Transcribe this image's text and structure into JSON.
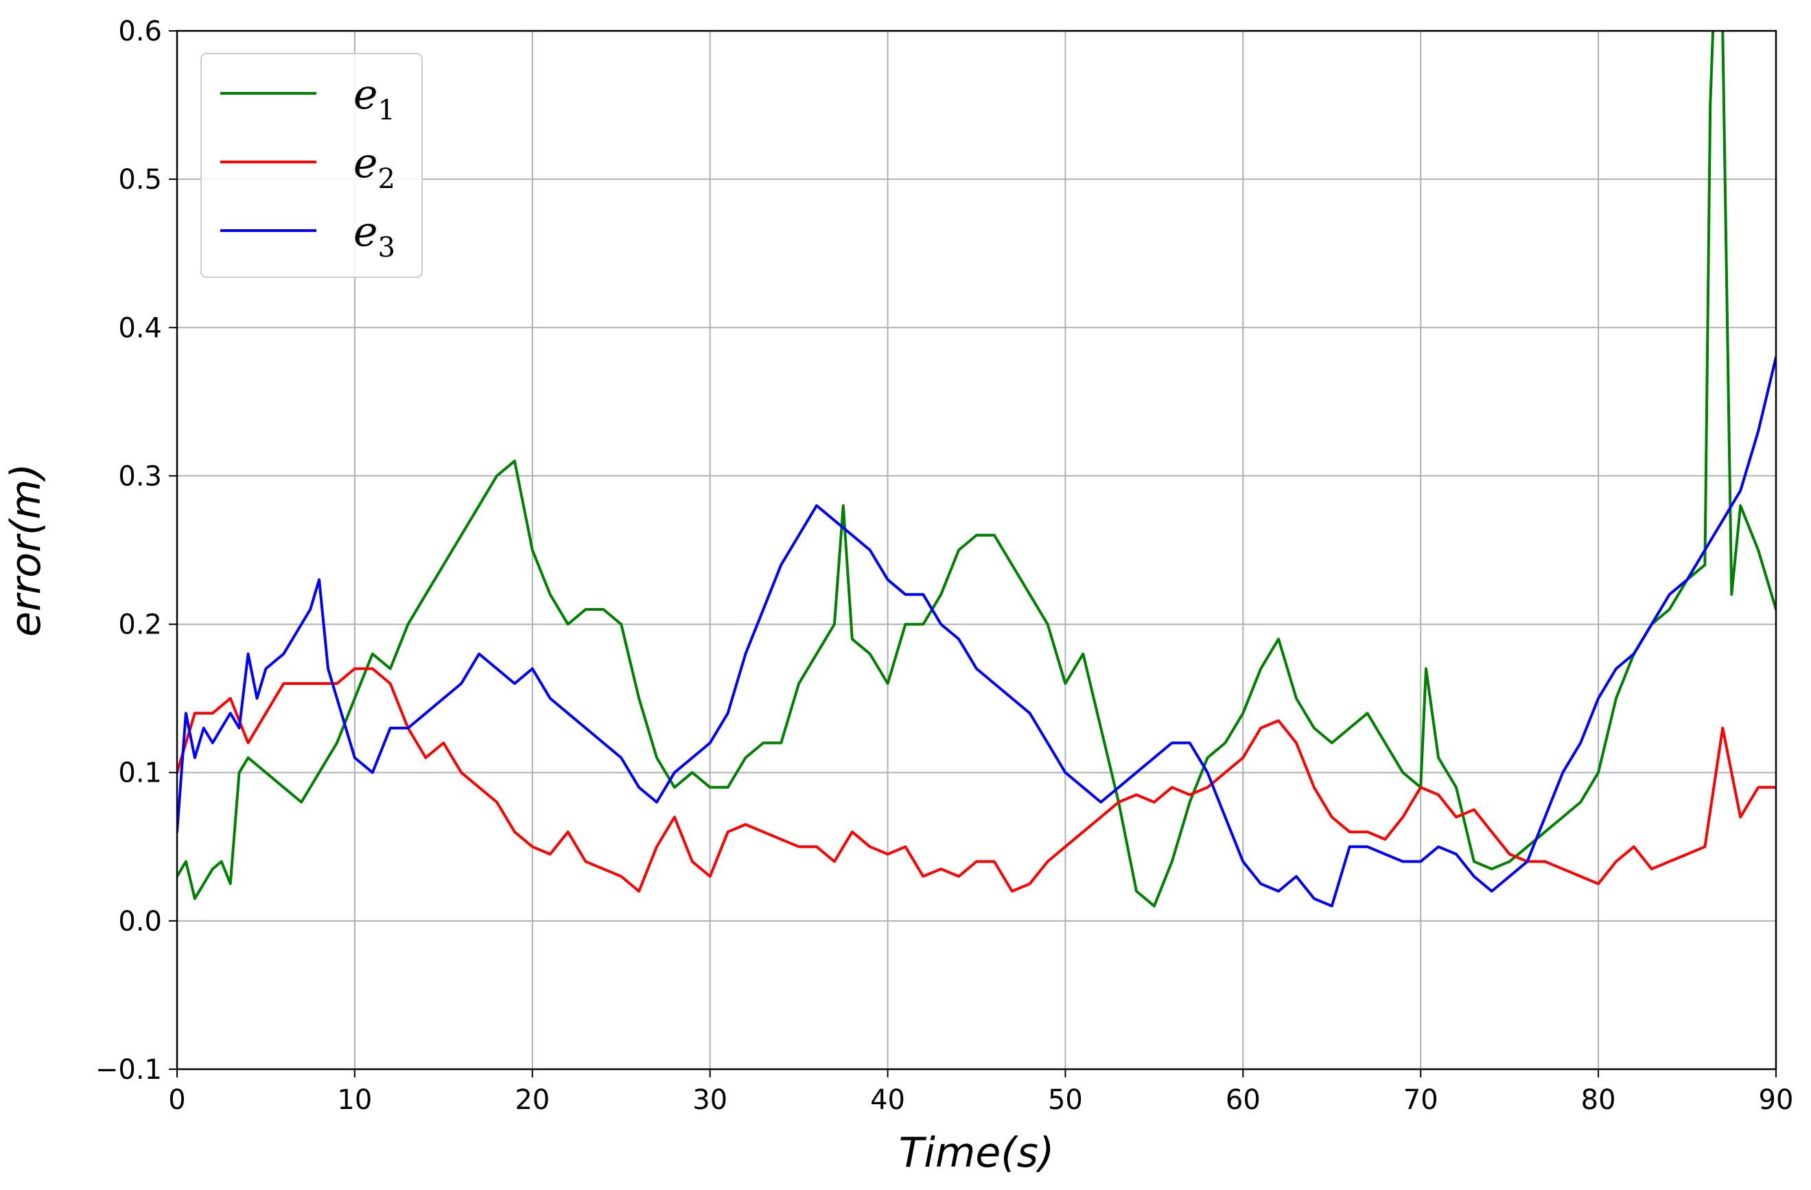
{
  "chart_data": {
    "type": "line",
    "title": "",
    "xlabel": "Time(s)",
    "ylabel": "error(m)",
    "xlim": [
      0,
      90
    ],
    "ylim": [
      -0.1,
      0.6
    ],
    "xticks": [
      0,
      10,
      20,
      30,
      40,
      50,
      60,
      70,
      80,
      90
    ],
    "xtick_labels": [
      "0",
      "10",
      "20",
      "30",
      "40",
      "50",
      "60",
      "70",
      "80",
      "90"
    ],
    "yticks": [
      -0.1,
      0.0,
      0.1,
      0.2,
      0.3,
      0.4,
      0.5,
      0.6
    ],
    "ytick_labels": [
      "−0.1",
      "0.0",
      "0.1",
      "0.2",
      "0.3",
      "0.4",
      "0.5",
      "0.6"
    ],
    "grid": true,
    "legend": "top-left",
    "series": [
      {
        "name": "e",
        "subscript": "1",
        "color": "#008000",
        "x": [
          0,
          0.5,
          1,
          1.5,
          2,
          2.5,
          3,
          3.5,
          4,
          5,
          6,
          7,
          8,
          9,
          10,
          11,
          12,
          13,
          14,
          15,
          16,
          17,
          18,
          19,
          20,
          21,
          22,
          23,
          24,
          25,
          26,
          27,
          28,
          29,
          30,
          31,
          32,
          33,
          34,
          35,
          36,
          37,
          37.5,
          38,
          39,
          40,
          41,
          42,
          43,
          44,
          45,
          46,
          47,
          48,
          49,
          50,
          51,
          52,
          53,
          54,
          55,
          56,
          57,
          58,
          59,
          60,
          61,
          62,
          63,
          64,
          65,
          66,
          67,
          68,
          69,
          70,
          70.3,
          71,
          72,
          73,
          74,
          75,
          76,
          77,
          78,
          79,
          80,
          81,
          82,
          83,
          84,
          85,
          86,
          86.3,
          86.6,
          87,
          87.5,
          88,
          89,
          90
        ],
        "y": [
          0.03,
          0.04,
          0.015,
          0.025,
          0.035,
          0.04,
          0.025,
          0.1,
          0.11,
          0.1,
          0.09,
          0.08,
          0.1,
          0.12,
          0.15,
          0.18,
          0.17,
          0.2,
          0.22,
          0.24,
          0.26,
          0.28,
          0.3,
          0.31,
          0.25,
          0.22,
          0.2,
          0.21,
          0.21,
          0.2,
          0.15,
          0.11,
          0.09,
          0.1,
          0.09,
          0.09,
          0.11,
          0.12,
          0.12,
          0.16,
          0.18,
          0.2,
          0.28,
          0.19,
          0.18,
          0.16,
          0.2,
          0.2,
          0.22,
          0.25,
          0.26,
          0.26,
          0.24,
          0.22,
          0.2,
          0.16,
          0.18,
          0.13,
          0.08,
          0.02,
          0.01,
          0.04,
          0.08,
          0.11,
          0.12,
          0.14,
          0.17,
          0.19,
          0.15,
          0.13,
          0.12,
          0.13,
          0.14,
          0.12,
          0.1,
          0.09,
          0.17,
          0.11,
          0.09,
          0.04,
          0.035,
          0.04,
          0.05,
          0.06,
          0.07,
          0.08,
          0.1,
          0.15,
          0.18,
          0.2,
          0.21,
          0.23,
          0.24,
          0.55,
          0.65,
          0.6,
          0.22,
          0.28,
          0.25,
          0.21
        ]
      },
      {
        "name": "e",
        "subscript": "2",
        "color": "#ff0000",
        "x": [
          0,
          0.5,
          1,
          2,
          3,
          4,
          5,
          6,
          7,
          8,
          9,
          10,
          11,
          12,
          13,
          14,
          15,
          16,
          17,
          18,
          19,
          20,
          21,
          22,
          23,
          24,
          25,
          26,
          27,
          28,
          29,
          30,
          31,
          32,
          33,
          34,
          35,
          36,
          37,
          38,
          39,
          40,
          41,
          42,
          43,
          44,
          45,
          46,
          47,
          48,
          49,
          50,
          51,
          52,
          53,
          54,
          55,
          56,
          57,
          58,
          59,
          60,
          61,
          62,
          63,
          64,
          65,
          66,
          67,
          68,
          69,
          70,
          71,
          72,
          73,
          74,
          75,
          76,
          77,
          78,
          79,
          80,
          81,
          82,
          83,
          84,
          85,
          86,
          87,
          88,
          89,
          90
        ],
        "y": [
          0.1,
          0.12,
          0.14,
          0.14,
          0.15,
          0.12,
          0.14,
          0.16,
          0.16,
          0.16,
          0.16,
          0.17,
          0.17,
          0.16,
          0.13,
          0.11,
          0.12,
          0.1,
          0.09,
          0.08,
          0.06,
          0.05,
          0.045,
          0.06,
          0.04,
          0.035,
          0.03,
          0.02,
          0.05,
          0.07,
          0.04,
          0.03,
          0.06,
          0.065,
          0.06,
          0.055,
          0.05,
          0.05,
          0.04,
          0.06,
          0.05,
          0.045,
          0.05,
          0.03,
          0.035,
          0.03,
          0.04,
          0.04,
          0.02,
          0.025,
          0.04,
          0.05,
          0.06,
          0.07,
          0.08,
          0.085,
          0.08,
          0.09,
          0.085,
          0.09,
          0.1,
          0.11,
          0.13,
          0.135,
          0.12,
          0.09,
          0.07,
          0.06,
          0.06,
          0.055,
          0.07,
          0.09,
          0.085,
          0.07,
          0.075,
          0.06,
          0.045,
          0.04,
          0.04,
          0.035,
          0.03,
          0.025,
          0.04,
          0.05,
          0.035,
          0.04,
          0.045,
          0.05,
          0.13,
          0.07,
          0.09,
          0.09
        ]
      },
      {
        "name": "e",
        "subscript": "3",
        "color": "#0000ff",
        "x": [
          0,
          0.5,
          1,
          1.5,
          2,
          2.5,
          3,
          3.5,
          4,
          4.5,
          5,
          6,
          7,
          7.5,
          8,
          8.5,
          9,
          10,
          11,
          12,
          13,
          14,
          15,
          16,
          17,
          18,
          19,
          20,
          21,
          22,
          23,
          24,
          25,
          26,
          27,
          28,
          29,
          30,
          31,
          32,
          33,
          34,
          35,
          36,
          37,
          38,
          39,
          40,
          41,
          42,
          43,
          44,
          45,
          46,
          47,
          48,
          49,
          50,
          51,
          52,
          53,
          54,
          55,
          56,
          57,
          58,
          59,
          60,
          61,
          62,
          63,
          64,
          65,
          66,
          67,
          68,
          69,
          70,
          71,
          72,
          73,
          74,
          75,
          76,
          77,
          78,
          79,
          80,
          81,
          82,
          83,
          84,
          85,
          86,
          87,
          88,
          89,
          90
        ],
        "y": [
          0.06,
          0.14,
          0.11,
          0.13,
          0.12,
          0.13,
          0.14,
          0.13,
          0.18,
          0.15,
          0.17,
          0.18,
          0.2,
          0.21,
          0.23,
          0.17,
          0.15,
          0.11,
          0.1,
          0.13,
          0.13,
          0.14,
          0.15,
          0.16,
          0.18,
          0.17,
          0.16,
          0.17,
          0.15,
          0.14,
          0.13,
          0.12,
          0.11,
          0.09,
          0.08,
          0.1,
          0.11,
          0.12,
          0.14,
          0.18,
          0.21,
          0.24,
          0.26,
          0.28,
          0.27,
          0.26,
          0.25,
          0.23,
          0.22,
          0.22,
          0.2,
          0.19,
          0.17,
          0.16,
          0.15,
          0.14,
          0.12,
          0.1,
          0.09,
          0.08,
          0.09,
          0.1,
          0.11,
          0.12,
          0.12,
          0.1,
          0.07,
          0.04,
          0.025,
          0.02,
          0.03,
          0.015,
          0.01,
          0.05,
          0.05,
          0.045,
          0.04,
          0.04,
          0.05,
          0.045,
          0.03,
          0.02,
          0.03,
          0.04,
          0.07,
          0.1,
          0.12,
          0.15,
          0.17,
          0.18,
          0.2,
          0.22,
          0.23,
          0.25,
          0.27,
          0.29,
          0.33,
          0.38
        ]
      }
    ]
  }
}
